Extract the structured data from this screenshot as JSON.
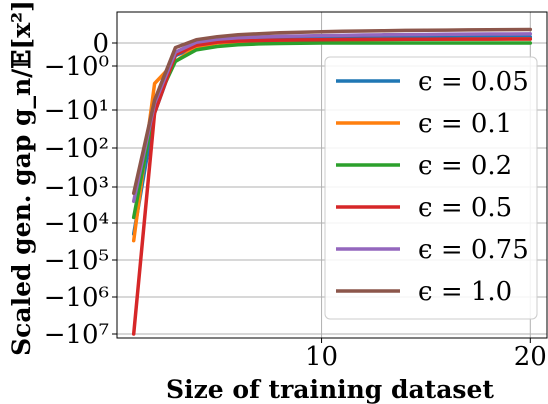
{
  "chart_data": {
    "type": "line",
    "xlabel": "Size of training dataset",
    "ylabel": "Scaled gen. gap g_n/𝔼[x²]",
    "x_ticks": [
      10,
      20
    ],
    "y_ticks": [
      {
        "label": "0",
        "value": 0
      },
      {
        "label": "−10⁰",
        "value": -1
      },
      {
        "label": "−10¹",
        "value": -10
      },
      {
        "label": "−10²",
        "value": -100
      },
      {
        "label": "−10³",
        "value": -1000
      },
      {
        "label": "−10⁴",
        "value": -10000
      },
      {
        "label": "−10⁵",
        "value": -100000
      },
      {
        "label": "−10⁶",
        "value": -1000000
      },
      {
        "label": "−10⁷",
        "value": -10000000
      }
    ],
    "y_scale": "symlog",
    "xlim": [
      0.2,
      20.8
    ],
    "grid": true,
    "legend_position": "right",
    "x": [
      1,
      2,
      3,
      4,
      5,
      6,
      7,
      8,
      9,
      10,
      11,
      12,
      13,
      14,
      15,
      16,
      17,
      18,
      19,
      20
    ],
    "series": [
      {
        "name": "ϵ = 0.05",
        "color": "#1f77b4",
        "values": [
          -20000,
          -12,
          -0.55,
          -0.15,
          0.05,
          0.14,
          0.2,
          0.24,
          0.27,
          0.29,
          0.31,
          0.33,
          0.34,
          0.35,
          0.36,
          0.37,
          0.38,
          0.38,
          0.39,
          0.4
        ]
      },
      {
        "name": "ϵ = 0.1",
        "color": "#ff7f0e",
        "values": [
          -30000,
          -2.5,
          -0.8,
          -0.18,
          0.0,
          0.08,
          0.13,
          0.16,
          0.18,
          0.2,
          0.21,
          0.22,
          0.23,
          0.24,
          0.25,
          0.25,
          0.26,
          0.26,
          0.27,
          0.27
        ]
      },
      {
        "name": "ϵ = 0.2",
        "color": "#2ca02c",
        "values": [
          -7000,
          -8,
          -0.8,
          -0.3,
          -0.15,
          -0.08,
          -0.04,
          -0.02,
          -0.01,
          0.0,
          0.0,
          0.0,
          0.0,
          0.0,
          0.0,
          0.0,
          0.0,
          0.0,
          0.0,
          0.0
        ]
      },
      {
        "name": "ϵ = 0.5",
        "color": "#d62728",
        "values": [
          -30000000,
          -12,
          -0.5,
          -0.1,
          0.06,
          0.13,
          0.17,
          0.19,
          0.21,
          0.22,
          0.23,
          0.24,
          0.24,
          0.25,
          0.25,
          0.26,
          0.26,
          0.26,
          0.27,
          0.27
        ]
      },
      {
        "name": "ϵ = 0.75",
        "color": "#9467bd",
        "values": [
          -2500,
          -7,
          -0.4,
          0.05,
          0.25,
          0.35,
          0.4,
          0.44,
          0.47,
          0.49,
          0.51,
          0.53,
          0.55,
          0.56,
          0.57,
          0.58,
          0.59,
          0.6,
          0.6,
          0.61
        ]
      },
      {
        "name": "ϵ = 1.0",
        "color": "#8c564b",
        "values": [
          -1500,
          -6,
          -0.2,
          0.22,
          0.42,
          0.55,
          0.62,
          0.68,
          0.72,
          0.75,
          0.78,
          0.8,
          0.82,
          0.84,
          0.85,
          0.86,
          0.87,
          0.88,
          0.89,
          0.9
        ]
      }
    ]
  }
}
